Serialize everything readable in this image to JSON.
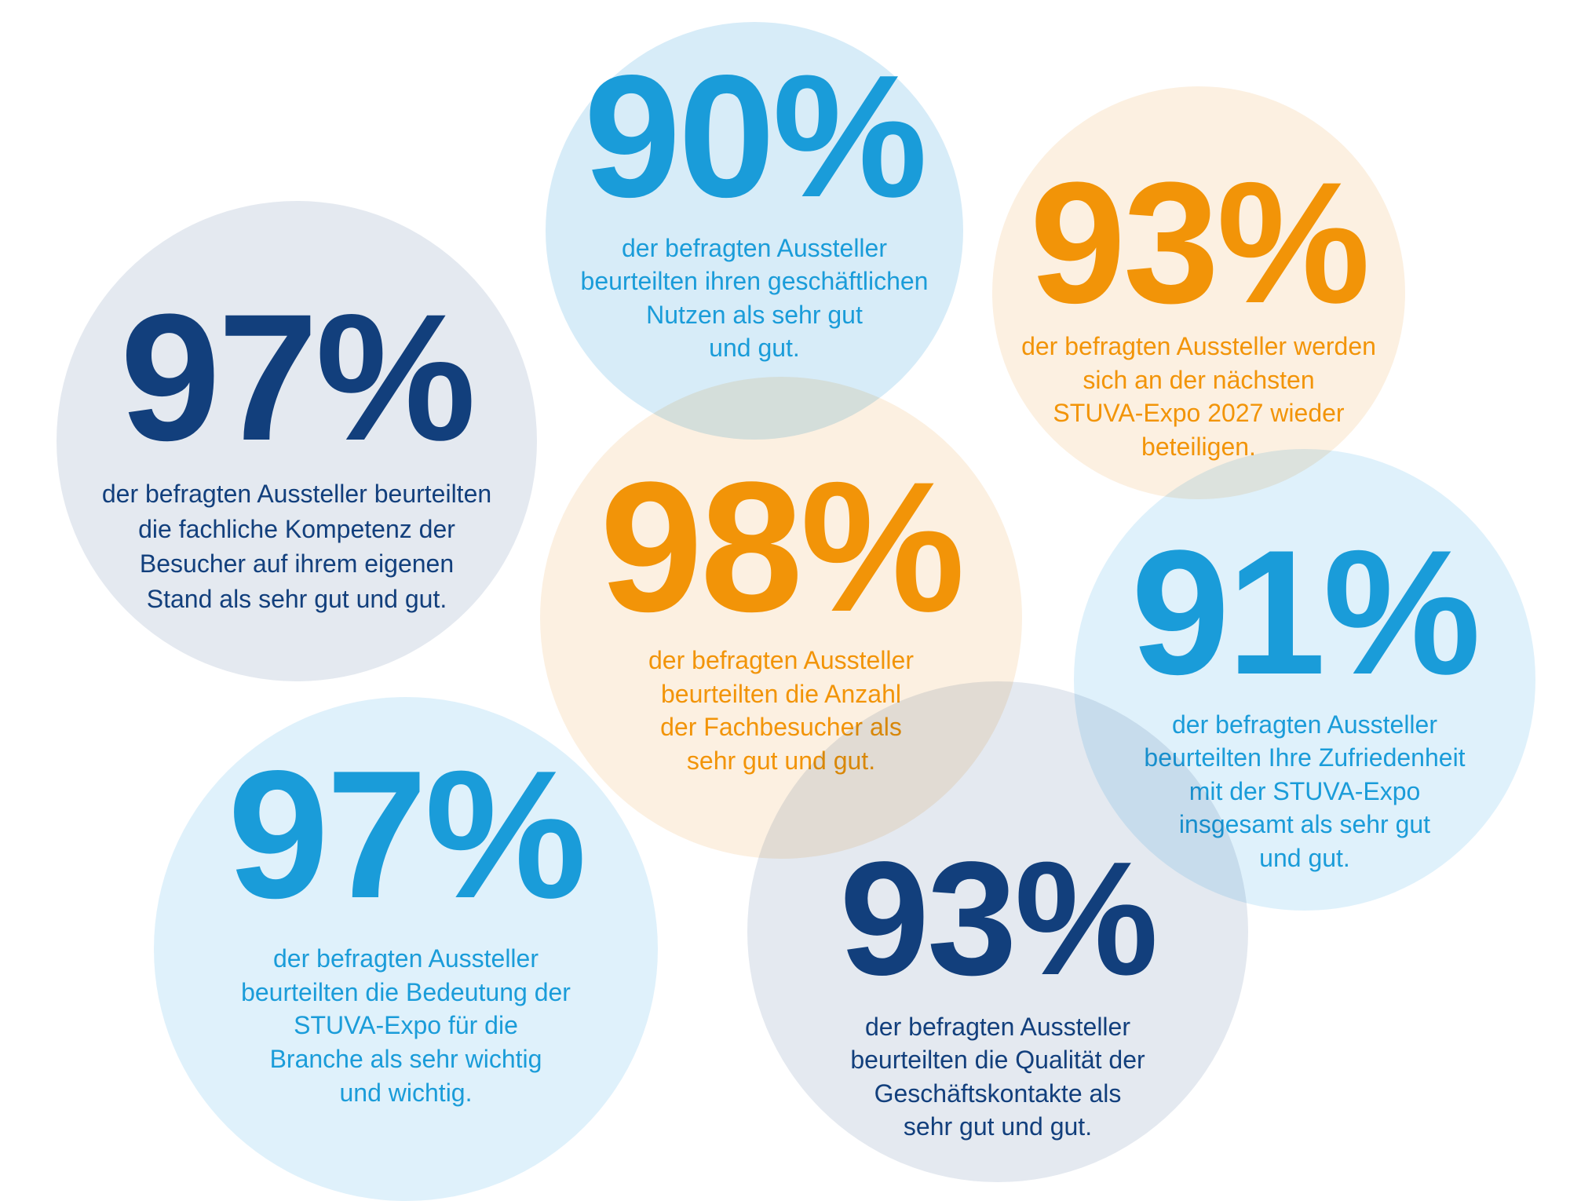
{
  "palette": {
    "background": "#FFFFFF",
    "blue": "#1A9CD9",
    "navy": "#123F7C",
    "orange": "#F29408",
    "light_blue_circle": "#D7ECF8",
    "pale_blue_circle": "#DFF1FB",
    "cream_circle": "#FCF0E1",
    "gray_blue_circle": "#E4E9F0"
  },
  "circles": [
    {
      "id": "geschaeftlicher-nutzen",
      "percent": "90%",
      "description": [
        "der befragten Aussteller",
        "beurteilten ihren geschäftlichen",
        "Nutzen als sehr gut",
        "und gut."
      ],
      "text_color": "#1A9CD9",
      "bg_color": "#D7ECF8"
    },
    {
      "id": "wiederbeteiligung-2027",
      "percent": "93%",
      "description": [
        "der befragten Aussteller werden",
        "sich an der nächsten",
        "STUVA-Expo 2027 wieder",
        "beteiligen."
      ],
      "text_color": "#F29408",
      "bg_color": "#FCF0E1"
    },
    {
      "id": "fachliche-kompetenz",
      "percent": "97%",
      "description": [
        "der befragten Aussteller beurteilten",
        "die fachliche Kompetenz der",
        "Besucher auf ihrem eigenen",
        "Stand als sehr gut und gut."
      ],
      "text_color": "#123F7C",
      "bg_color": "#E4E9F0"
    },
    {
      "id": "anzahl-fachbesucher",
      "percent": "98%",
      "description": [
        "der befragten Aussteller",
        "beurteilten die Anzahl",
        "der Fachbesucher als",
        "sehr gut und gut."
      ],
      "text_color": "#F29408",
      "bg_color": "#FCF0E1"
    },
    {
      "id": "zufriedenheit-insgesamt",
      "percent": "91%",
      "description": [
        "der befragten Aussteller",
        "beurteilten Ihre Zufriedenheit",
        "mit der STUVA-Expo",
        "insgesamt als sehr gut",
        "und gut."
      ],
      "text_color": "#1A9CD9",
      "bg_color": "#DFF1FB"
    },
    {
      "id": "bedeutung-branche",
      "percent": "97%",
      "description": [
        "der befragten Aussteller",
        "beurteilten die Bedeutung der",
        "STUVA-Expo für die",
        "Branche als sehr wichtig",
        "und wichtig."
      ],
      "text_color": "#1A9CD9",
      "bg_color": "#DFF1FB"
    },
    {
      "id": "qualitaet-geschaeftskontakte",
      "percent": "93%",
      "description": [
        "der befragten Aussteller",
        "beurteilten die Qualität der",
        "Geschäftskontakte als",
        "sehr gut und gut."
      ],
      "text_color": "#123F7C",
      "bg_color": "#E4E9F0"
    }
  ],
  "chart_data": {
    "type": "table",
    "title": "",
    "columns": [
      "percent",
      "statement"
    ],
    "rows": [
      [
        90,
        "der befragten Aussteller beurteilten ihren geschäftlichen Nutzen als sehr gut und gut."
      ],
      [
        93,
        "der befragten Aussteller werden sich an der nächsten STUVA-Expo 2027 wieder beteiligen."
      ],
      [
        97,
        "der befragten Aussteller beurteilten die fachliche Kompetenz der Besucher auf ihrem eigenen Stand als sehr gut und gut."
      ],
      [
        98,
        "der befragten Aussteller beurteilten die Anzahl der Fachbesucher als sehr gut und gut."
      ],
      [
        91,
        "der befragten Aussteller beurteilten Ihre Zufriedenheit mit der STUVA-Expo insgesamt als sehr gut und gut."
      ],
      [
        97,
        "der befragten Aussteller beurteilten die Bedeutung der STUVA-Expo für die Branche als sehr wichtig und wichtig."
      ],
      [
        93,
        "der befragten Aussteller beurteilten die Qualität der Geschäftskontakte als sehr gut und gut."
      ]
    ]
  }
}
